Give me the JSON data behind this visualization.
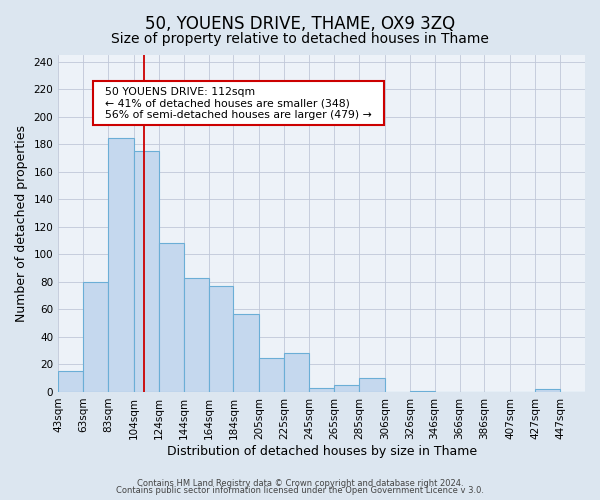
{
  "title": "50, YOUENS DRIVE, THAME, OX9 3ZQ",
  "subtitle": "Size of property relative to detached houses in Thame",
  "xlabel": "Distribution of detached houses by size in Thame",
  "ylabel": "Number of detached properties",
  "bar_labels": [
    "43sqm",
    "63sqm",
    "83sqm",
    "104sqm",
    "124sqm",
    "144sqm",
    "164sqm",
    "184sqm",
    "205sqm",
    "225sqm",
    "245sqm",
    "265sqm",
    "285sqm",
    "306sqm",
    "326sqm",
    "346sqm",
    "366sqm",
    "386sqm",
    "407sqm",
    "427sqm",
    "447sqm"
  ],
  "bar_values": [
    15,
    80,
    185,
    175,
    108,
    83,
    77,
    57,
    25,
    28,
    3,
    5,
    10,
    0,
    1,
    0,
    0,
    0,
    0,
    2,
    0
  ],
  "bar_edges": [
    43,
    63,
    83,
    104,
    124,
    144,
    164,
    184,
    205,
    225,
    245,
    265,
    285,
    306,
    326,
    346,
    366,
    386,
    407,
    427,
    447
  ],
  "bar_color": "#c5d8ee",
  "bar_edge_color": "#6baed6",
  "red_line_x": 112,
  "annotation_title": "50 YOUENS DRIVE: 112sqm",
  "annotation_line1": "← 41% of detached houses are smaller (348)",
  "annotation_line2": "56% of semi-detached houses are larger (479) →",
  "annotation_box_color": "#ffffff",
  "annotation_box_edge": "#cc0000",
  "ylim": [
    0,
    245
  ],
  "yticks": [
    0,
    20,
    40,
    60,
    80,
    100,
    120,
    140,
    160,
    180,
    200,
    220,
    240
  ],
  "footer1": "Contains HM Land Registry data © Crown copyright and database right 2024.",
  "footer2": "Contains public sector information licensed under the Open Government Licence v 3.0.",
  "title_fontsize": 12,
  "subtitle_fontsize": 10,
  "axis_label_fontsize": 9,
  "tick_fontsize": 7.5,
  "bg_color": "#dce6f0",
  "plot_bg_color": "#edf2f8"
}
